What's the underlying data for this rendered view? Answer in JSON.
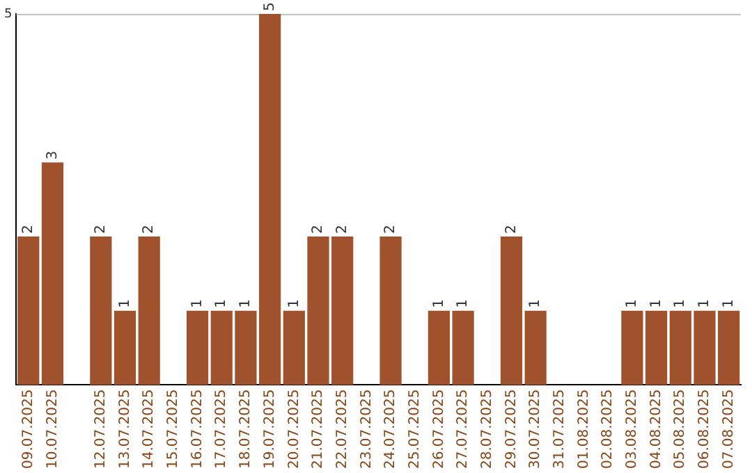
{
  "chart_data": {
    "type": "bar",
    "categories": [
      "09.07.2025",
      "10.07.2025",
      null,
      "12.07.2025",
      "13.07.2025",
      "14.07.2025",
      "15.07.2025",
      "16.07.2025",
      "17.07.2025",
      "18.07.2025",
      "19.07.2025",
      "20.07.2025",
      "21.07.2025",
      "22.07.2025",
      "23.07.2025",
      "24.07.2025",
      "25.07.2025",
      "26.07.2025",
      "27.07.2025",
      "28.07.2025",
      "29.07.2025",
      "30.07.2025",
      "31.07.2025",
      "01.08.2025",
      "02.08.2025",
      "03.08.2025",
      "04.08.2025",
      "05.08.2025",
      "06.08.2025",
      "07.08.2025"
    ],
    "values": [
      2,
      3,
      null,
      2,
      1,
      2,
      null,
      1,
      1,
      1,
      5,
      1,
      2,
      2,
      null,
      2,
      null,
      1,
      1,
      null,
      2,
      1,
      null,
      null,
      null,
      1,
      1,
      1,
      1,
      1
    ],
    "color": "#a0522d",
    "ylim": [
      0,
      5
    ],
    "yticks": [
      5
    ],
    "data_labels": true
  }
}
